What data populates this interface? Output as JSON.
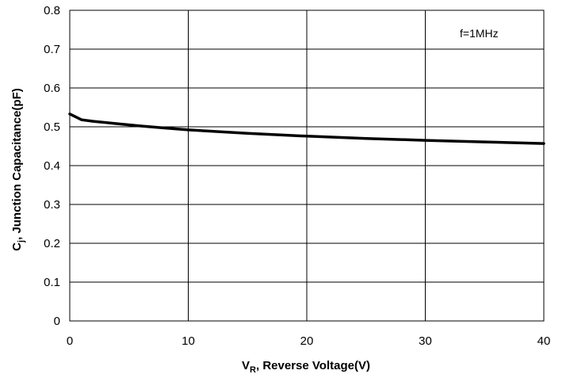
{
  "chart_data": {
    "type": "line",
    "title": "",
    "annotation": "f=1MHz",
    "xlabel": {
      "main": "V",
      "sub": "R",
      "rest": ", Reverse Voltage(V)"
    },
    "ylabel": {
      "main": "C",
      "sub": "j",
      "rest": ", Junction  Capacitance(pF)"
    },
    "xlim": [
      0,
      40
    ],
    "ylim": [
      0,
      0.8
    ],
    "x_ticks": [
      0,
      10,
      20,
      30,
      40
    ],
    "x_tick_labels": [
      "0",
      "10",
      "20",
      "30",
      "40"
    ],
    "y_ticks": [
      0,
      0.1,
      0.2,
      0.3,
      0.4,
      0.5,
      0.6,
      0.7,
      0.8
    ],
    "y_tick_labels": [
      "0",
      "0.1",
      "0.2",
      "0.3",
      "0.4",
      "0.5",
      "0.6",
      "0.7",
      "0.8"
    ],
    "grid": true,
    "series": [
      {
        "color": "#000000",
        "x": [
          0,
          1,
          2,
          4,
          6,
          8,
          10,
          15,
          20,
          25,
          30,
          35,
          40
        ],
        "y": [
          0.533,
          0.518,
          0.514,
          0.508,
          0.502,
          0.497,
          0.492,
          0.483,
          0.476,
          0.47,
          0.465,
          0.461,
          0.457
        ]
      }
    ]
  }
}
